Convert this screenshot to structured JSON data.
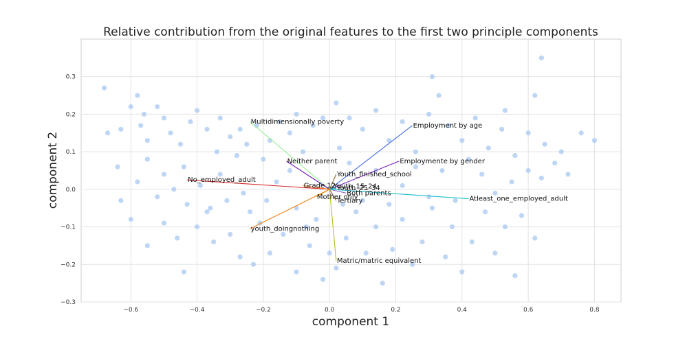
{
  "chart_data": {
    "type": "scatter",
    "title": "Relative contribution from the original features to the first two principle components",
    "xlabel": "component 1",
    "ylabel": "component 2",
    "xlim": [
      -0.75,
      0.88
    ],
    "ylim": [
      -0.3,
      0.4
    ],
    "xticks": [
      -0.6,
      -0.4,
      -0.2,
      0.0,
      0.2,
      0.4,
      0.6,
      0.8
    ],
    "xtick_labels": [
      "−0.6",
      "−0.4",
      "−0.2",
      "0.0",
      "0.2",
      "0.4",
      "0.6",
      "0.8"
    ],
    "yticks": [
      -0.3,
      -0.2,
      -0.1,
      0.0,
      0.1,
      0.2,
      0.3
    ],
    "ytick_labels": [
      "−0.3",
      "−0.2",
      "−0.1",
      "0.0",
      "0.1",
      "0.2",
      "0.3"
    ],
    "grid": true,
    "point_color": "#a8c8f0",
    "points": [
      [
        -0.68,
        0.27
      ],
      [
        -0.58,
        0.25
      ],
      [
        -0.6,
        0.22
      ],
      [
        -0.56,
        0.2
      ],
      [
        -0.52,
        0.22
      ],
      [
        -0.63,
        0.16
      ],
      [
        -0.67,
        0.15
      ],
      [
        -0.57,
        0.17
      ],
      [
        -0.55,
        0.13
      ],
      [
        -0.5,
        0.19
      ],
      [
        -0.48,
        0.15
      ],
      [
        -0.45,
        0.12
      ],
      [
        -0.4,
        0.21
      ],
      [
        -0.42,
        0.18
      ],
      [
        -0.37,
        0.16
      ],
      [
        -0.33,
        0.19
      ],
      [
        -0.3,
        0.14
      ],
      [
        -0.34,
        0.1
      ],
      [
        -0.27,
        0.16
      ],
      [
        -0.25,
        0.12
      ],
      [
        -0.22,
        0.17
      ],
      [
        -0.2,
        0.08
      ],
      [
        -0.18,
        0.13
      ],
      [
        -0.15,
        0.18
      ],
      [
        -0.12,
        0.15
      ],
      [
        -0.1,
        0.2
      ],
      [
        -0.05,
        0.17
      ],
      [
        -0.02,
        0.19
      ],
      [
        -0.64,
        0.06
      ],
      [
        -0.58,
        0.02
      ],
      [
        -0.55,
        0.08
      ],
      [
        -0.52,
        -0.02
      ],
      [
        -0.5,
        0.04
      ],
      [
        -0.47,
        0.0
      ],
      [
        -0.44,
        0.06
      ],
      [
        -0.43,
        -0.04
      ],
      [
        -0.39,
        0.01
      ],
      [
        -0.36,
        -0.05
      ],
      [
        -0.33,
        0.04
      ],
      [
        -0.31,
        -0.03
      ],
      [
        -0.28,
        0.09
      ],
      [
        -0.26,
        -0.01
      ],
      [
        -0.24,
        -0.06
      ],
      [
        -0.63,
        -0.03
      ],
      [
        -0.6,
        -0.08
      ],
      [
        -0.55,
        -0.15
      ],
      [
        -0.5,
        -0.09
      ],
      [
        -0.46,
        -0.13
      ],
      [
        -0.44,
        -0.22
      ],
      [
        -0.4,
        -0.1
      ],
      [
        -0.37,
        -0.06
      ],
      [
        -0.35,
        -0.14
      ],
      [
        -0.3,
        -0.12
      ],
      [
        -0.27,
        -0.18
      ],
      [
        -0.23,
        -0.2
      ],
      [
        -0.21,
        -0.09
      ],
      [
        -0.18,
        -0.17
      ],
      [
        -0.14,
        -0.12
      ],
      [
        -0.1,
        -0.22
      ],
      [
        -0.1,
        -0.05
      ],
      [
        -0.06,
        -0.15
      ],
      [
        -0.04,
        -0.08
      ],
      [
        -0.02,
        -0.24
      ],
      [
        0.02,
        -0.21
      ],
      [
        0.05,
        -0.13
      ],
      [
        0.08,
        -0.06
      ],
      [
        0.11,
        -0.17
      ],
      [
        0.14,
        -0.1
      ],
      [
        0.16,
        -0.25
      ],
      [
        0.19,
        -0.16
      ],
      [
        0.22,
        -0.08
      ],
      [
        0.25,
        -0.2
      ],
      [
        0.28,
        -0.14
      ],
      [
        0.31,
        -0.05
      ],
      [
        0.35,
        -0.18
      ],
      [
        0.37,
        -0.1
      ],
      [
        0.4,
        -0.22
      ],
      [
        0.43,
        -0.14
      ],
      [
        0.47,
        -0.06
      ],
      [
        0.5,
        -0.17
      ],
      [
        0.53,
        -0.1
      ],
      [
        0.56,
        -0.23
      ],
      [
        0.58,
        -0.07
      ],
      [
        0.62,
        -0.13
      ],
      [
        0.02,
        0.23
      ],
      [
        0.06,
        0.19
      ],
      [
        0.1,
        0.16
      ],
      [
        0.14,
        0.21
      ],
      [
        0.18,
        0.13
      ],
      [
        0.22,
        0.18
      ],
      [
        0.26,
        0.1
      ],
      [
        0.3,
        0.2
      ],
      [
        0.31,
        0.3
      ],
      [
        0.33,
        0.25
      ],
      [
        0.36,
        0.17
      ],
      [
        0.4,
        0.13
      ],
      [
        0.44,
        0.19
      ],
      [
        0.48,
        0.11
      ],
      [
        0.52,
        0.16
      ],
      [
        0.53,
        0.21
      ],
      [
        0.56,
        0.09
      ],
      [
        0.6,
        0.15
      ],
      [
        0.62,
        0.25
      ],
      [
        0.64,
        0.35
      ],
      [
        0.65,
        0.12
      ],
      [
        0.68,
        0.07
      ],
      [
        0.7,
        0.1
      ],
      [
        0.72,
        0.04
      ],
      [
        0.76,
        0.15
      ],
      [
        0.8,
        0.13
      ],
      [
        0.64,
        0.03
      ],
      [
        0.6,
        0.05
      ],
      [
        0.55,
        0.02
      ],
      [
        0.5,
        -0.01
      ],
      [
        0.46,
        0.04
      ],
      [
        0.42,
        0.08
      ],
      [
        0.38,
        -0.03
      ],
      [
        0.34,
        0.05
      ],
      [
        0.3,
        -0.02
      ],
      [
        0.26,
        0.06
      ],
      [
        0.22,
        0.01
      ],
      [
        0.18,
        -0.04
      ],
      [
        0.14,
        0.05
      ],
      [
        0.1,
        -0.03
      ],
      [
        0.06,
        0.07
      ],
      [
        0.03,
        0.11
      ],
      [
        -0.08,
        0.1
      ],
      [
        -0.12,
        0.05
      ],
      [
        -0.16,
        0.02
      ],
      [
        -0.19,
        -0.03
      ],
      [
        -0.07,
        -0.1
      ],
      [
        0.0,
        -0.17
      ],
      [
        0.04,
        -0.04
      ]
    ],
    "vectors": [
      {
        "label": "Multidimensionally poverty",
        "x": -0.24,
        "y": 0.18,
        "color": "#90ee90"
      },
      {
        "label": "Employment by age",
        "x": 0.25,
        "y": 0.17,
        "color": "#4169e1"
      },
      {
        "label": "Neither parent",
        "x": -0.13,
        "y": 0.075,
        "color": "#6a0dad"
      },
      {
        "label": "Employmente by gender",
        "x": 0.21,
        "y": 0.075,
        "color": "#7b2fbe"
      },
      {
        "label": "Youth_finished_school",
        "x": 0.02,
        "y": 0.04,
        "color": "#8a6a2a"
      },
      {
        "label": "No_employed_adult",
        "x": -0.43,
        "y": 0.025,
        "color": "#d62728"
      },
      {
        "label": "Grade 12",
        "x": -0.08,
        "y": 0.01,
        "color": "#ff7f0e"
      },
      {
        "label": "Youth_15_24",
        "x": 0.01,
        "y": 0.008,
        "color": "#2ca02c"
      },
      {
        "label": "Youth_25_34",
        "x": 0.02,
        "y": 0.003,
        "color": "#17becf"
      },
      {
        "label": "Both parents",
        "x": 0.05,
        "y": -0.01,
        "color": "#9467bd"
      },
      {
        "label": "Mother only",
        "x": -0.04,
        "y": -0.02,
        "color": "#bcbd22"
      },
      {
        "label": "Tertiary",
        "x": 0.02,
        "y": -0.03,
        "color": "#8c564b"
      },
      {
        "label": "Atleast_one_employed_adult",
        "x": 0.42,
        "y": -0.025,
        "color": "#17becf"
      },
      {
        "label": "youth_doingnothing",
        "x": -0.24,
        "y": -0.105,
        "color": "#ff7f0e"
      },
      {
        "label": "Matric/matric equivalent",
        "x": 0.02,
        "y": -0.19,
        "color": "#bcbd22"
      }
    ]
  }
}
